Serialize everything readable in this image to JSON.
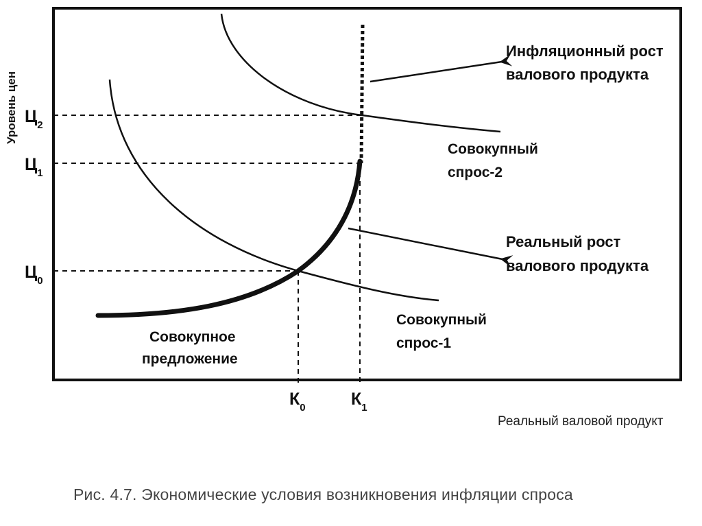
{
  "diagram": {
    "axis_y_title": "Уровень цен",
    "axis_x_title": "Реальный валовой продукт",
    "y_ticks": [
      {
        "main": "Ц",
        "sub": "2"
      },
      {
        "main": "Ц",
        "sub": "1"
      },
      {
        "main": "Ц",
        "sub": "0"
      }
    ],
    "x_ticks": [
      {
        "main": "К",
        "sub": "0"
      },
      {
        "main": "К",
        "sub": "1"
      }
    ],
    "curves": {
      "demand2_line1": "Совокупный",
      "demand2_line2": "спрос-2",
      "demand1_line1": "Совокупный",
      "demand1_line2": "спрос-1",
      "supply_line1": "Совокупное",
      "supply_line2": "предложение"
    },
    "annotations": {
      "inflation_line1": "Инфляционный рост",
      "inflation_line2": "валового продукта",
      "real_line1": "Реальный рост",
      "real_line2": "валового продукта"
    },
    "caption": "Рис. 4.7. Экономические условия возникновения инфляции спроса",
    "colors": {
      "ink": "#111111",
      "caption": "#444444",
      "background": "#ffffff"
    }
  }
}
